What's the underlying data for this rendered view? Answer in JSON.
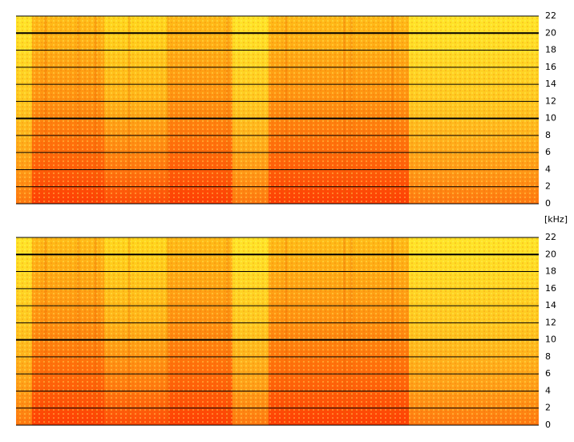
{
  "chart_data": [
    {
      "type": "spectrogram",
      "ylabel": "[kHz]",
      "ylim": [
        0,
        22
      ],
      "yticks": [
        0,
        2,
        4,
        6,
        8,
        10,
        12,
        14,
        16,
        18,
        20,
        22
      ],
      "grid": true
    },
    {
      "type": "spectrogram",
      "ylim": [
        0,
        22
      ],
      "yticks": [
        0,
        2,
        4,
        6,
        8,
        10,
        12,
        14,
        16,
        18,
        20,
        22
      ],
      "grid": true
    }
  ]
}
